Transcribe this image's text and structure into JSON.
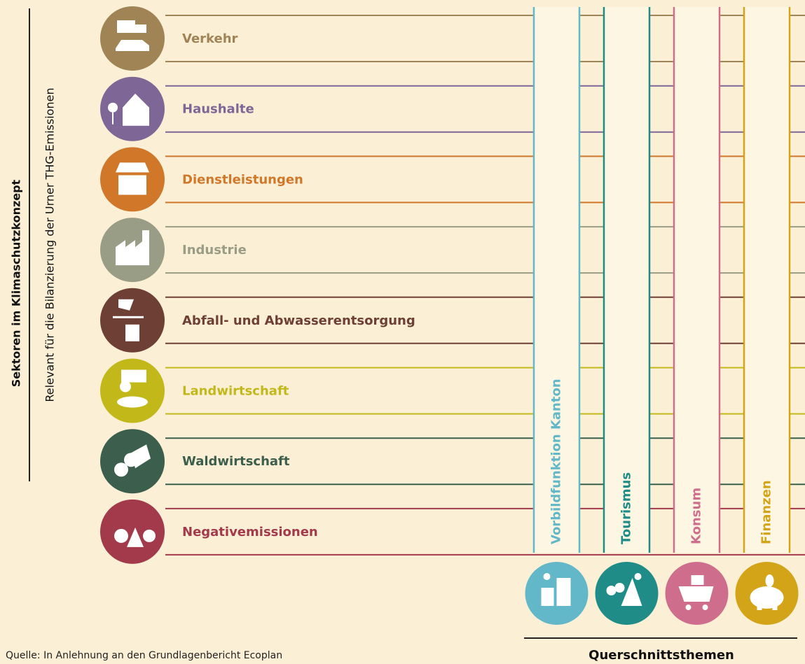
{
  "left_axis": {
    "title": "Sektoren im Klimaschutzkonzept",
    "subtitle": "Relevant für die Bilanzierung der Urner THG-Emissionen"
  },
  "sectors": [
    "Verkehr",
    "Haushalte",
    "Dienstleistungen",
    "Industrie",
    "Abfall- und Abwasserentsorgung",
    "Landwirtschaft",
    "Waldwirtschaft",
    "Negativemissionen"
  ],
  "cross_topics": {
    "title": "Querschnittsthemen",
    "items": [
      "Vorbildfunktion Kanton",
      "Tourismus",
      "Konsum",
      "Finanzen"
    ]
  },
  "source": "Quelle: In Anlehnung an den Grundlagenbericht Ecoplan"
}
